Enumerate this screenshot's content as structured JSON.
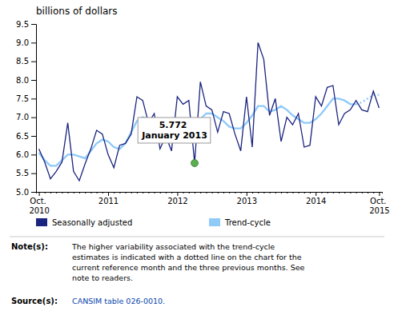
{
  "chart_data": {
    "type": "line",
    "title": "billions of dollars",
    "categories": [
      "Oct.\n2010",
      null,
      null,
      null,
      null,
      null,
      null,
      null,
      null,
      null,
      null,
      null,
      "2011",
      null,
      null,
      null,
      null,
      null,
      null,
      null,
      null,
      null,
      null,
      null,
      "2012",
      null,
      null,
      null,
      null,
      null,
      null,
      null,
      null,
      null,
      null,
      null,
      "2013",
      null,
      null,
      null,
      null,
      null,
      null,
      null,
      null,
      null,
      null,
      null,
      "2014",
      null,
      null,
      null,
      null,
      null,
      null,
      null,
      null,
      null,
      null,
      "Oct.\n2015"
    ],
    "series": [
      {
        "name": "Seasonally adjusted",
        "color": "#1a237e",
        "line_style": "solid",
        "values": [
          6.15,
          5.8,
          5.35,
          5.55,
          5.8,
          6.85,
          5.55,
          5.3,
          5.75,
          6.15,
          6.65,
          6.55,
          6.0,
          5.65,
          6.25,
          6.3,
          6.55,
          7.55,
          7.45,
          6.85,
          7.1,
          6.15,
          6.5,
          6.1,
          7.55,
          7.35,
          7.45,
          5.772,
          7.95,
          7.3,
          7.2,
          6.6,
          7.15,
          7.1,
          6.55,
          6.1,
          7.55,
          6.2,
          9.0,
          8.55,
          7.05,
          7.5,
          6.35,
          7.0,
          6.8,
          7.1,
          6.2,
          6.25,
          7.55,
          7.3,
          7.8,
          7.85,
          6.8,
          7.1,
          7.2,
          7.45,
          7.2,
          7.15,
          7.7,
          7.25
        ]
      },
      {
        "name": "Trend-cycle",
        "color": "#90caf9",
        "line_style": "solid",
        "values": [
          6.05,
          5.85,
          5.7,
          5.7,
          5.85,
          6.0,
          6.0,
          5.95,
          5.9,
          6.1,
          6.3,
          6.4,
          6.35,
          6.2,
          6.15,
          6.3,
          6.6,
          6.9,
          7.0,
          6.95,
          6.9,
          6.75,
          6.65,
          6.55,
          6.55,
          6.6,
          6.7,
          6.8,
          6.95,
          7.1,
          7.1,
          7.0,
          6.9,
          6.75,
          6.7,
          6.7,
          6.85,
          7.05,
          7.3,
          7.3,
          7.15,
          7.2,
          7.3,
          7.2,
          7.05,
          6.95,
          6.85,
          6.85,
          6.95,
          7.1,
          7.3,
          7.5,
          7.5,
          7.45,
          7.35,
          7.35,
          null,
          null,
          null,
          null
        ]
      },
      {
        "color": "#90caf9",
        "line_style": "dotted",
        "values": [
          null,
          null,
          null,
          null,
          null,
          null,
          null,
          null,
          null,
          null,
          null,
          null,
          null,
          null,
          null,
          null,
          null,
          null,
          null,
          null,
          null,
          null,
          null,
          null,
          null,
          null,
          null,
          null,
          null,
          null,
          null,
          null,
          null,
          null,
          null,
          null,
          null,
          null,
          null,
          null,
          null,
          null,
          null,
          null,
          null,
          null,
          null,
          null,
          null,
          null,
          null,
          null,
          null,
          null,
          null,
          7.35,
          7.4,
          7.5,
          7.6,
          7.6
        ]
      }
    ],
    "ylim": [
      5.0,
      9.5
    ],
    "yticks": [
      {
        "value": 5.0,
        "label": "5.0"
      },
      5.5,
      {
        "value": 6.0,
        "label": "6.0"
      },
      6.5,
      {
        "value": 7.0,
        "label": "7.0"
      },
      7.5,
      {
        "value": 8.0,
        "label": "8.0"
      },
      8.5,
      {
        "value": 9.0,
        "label": "9.0"
      },
      9.5
    ],
    "grid": false,
    "legend": "bottom",
    "annotations": [
      {
        "text": "5.772\nJanuary 2013",
        "series": 0,
        "index": 27,
        "color": "#5aaf50"
      }
    ],
    "note": {
      "label": "Note(s):",
      "text": "The higher variability associated with the trend-cycle\nestimates is indicated with a dotted line on the chart for the\ncurrent reference month and the three previous months. See\nnote to readers."
    },
    "source": {
      "label": "Source(s):",
      "text": "CANSIM table 026-0010."
    }
  }
}
